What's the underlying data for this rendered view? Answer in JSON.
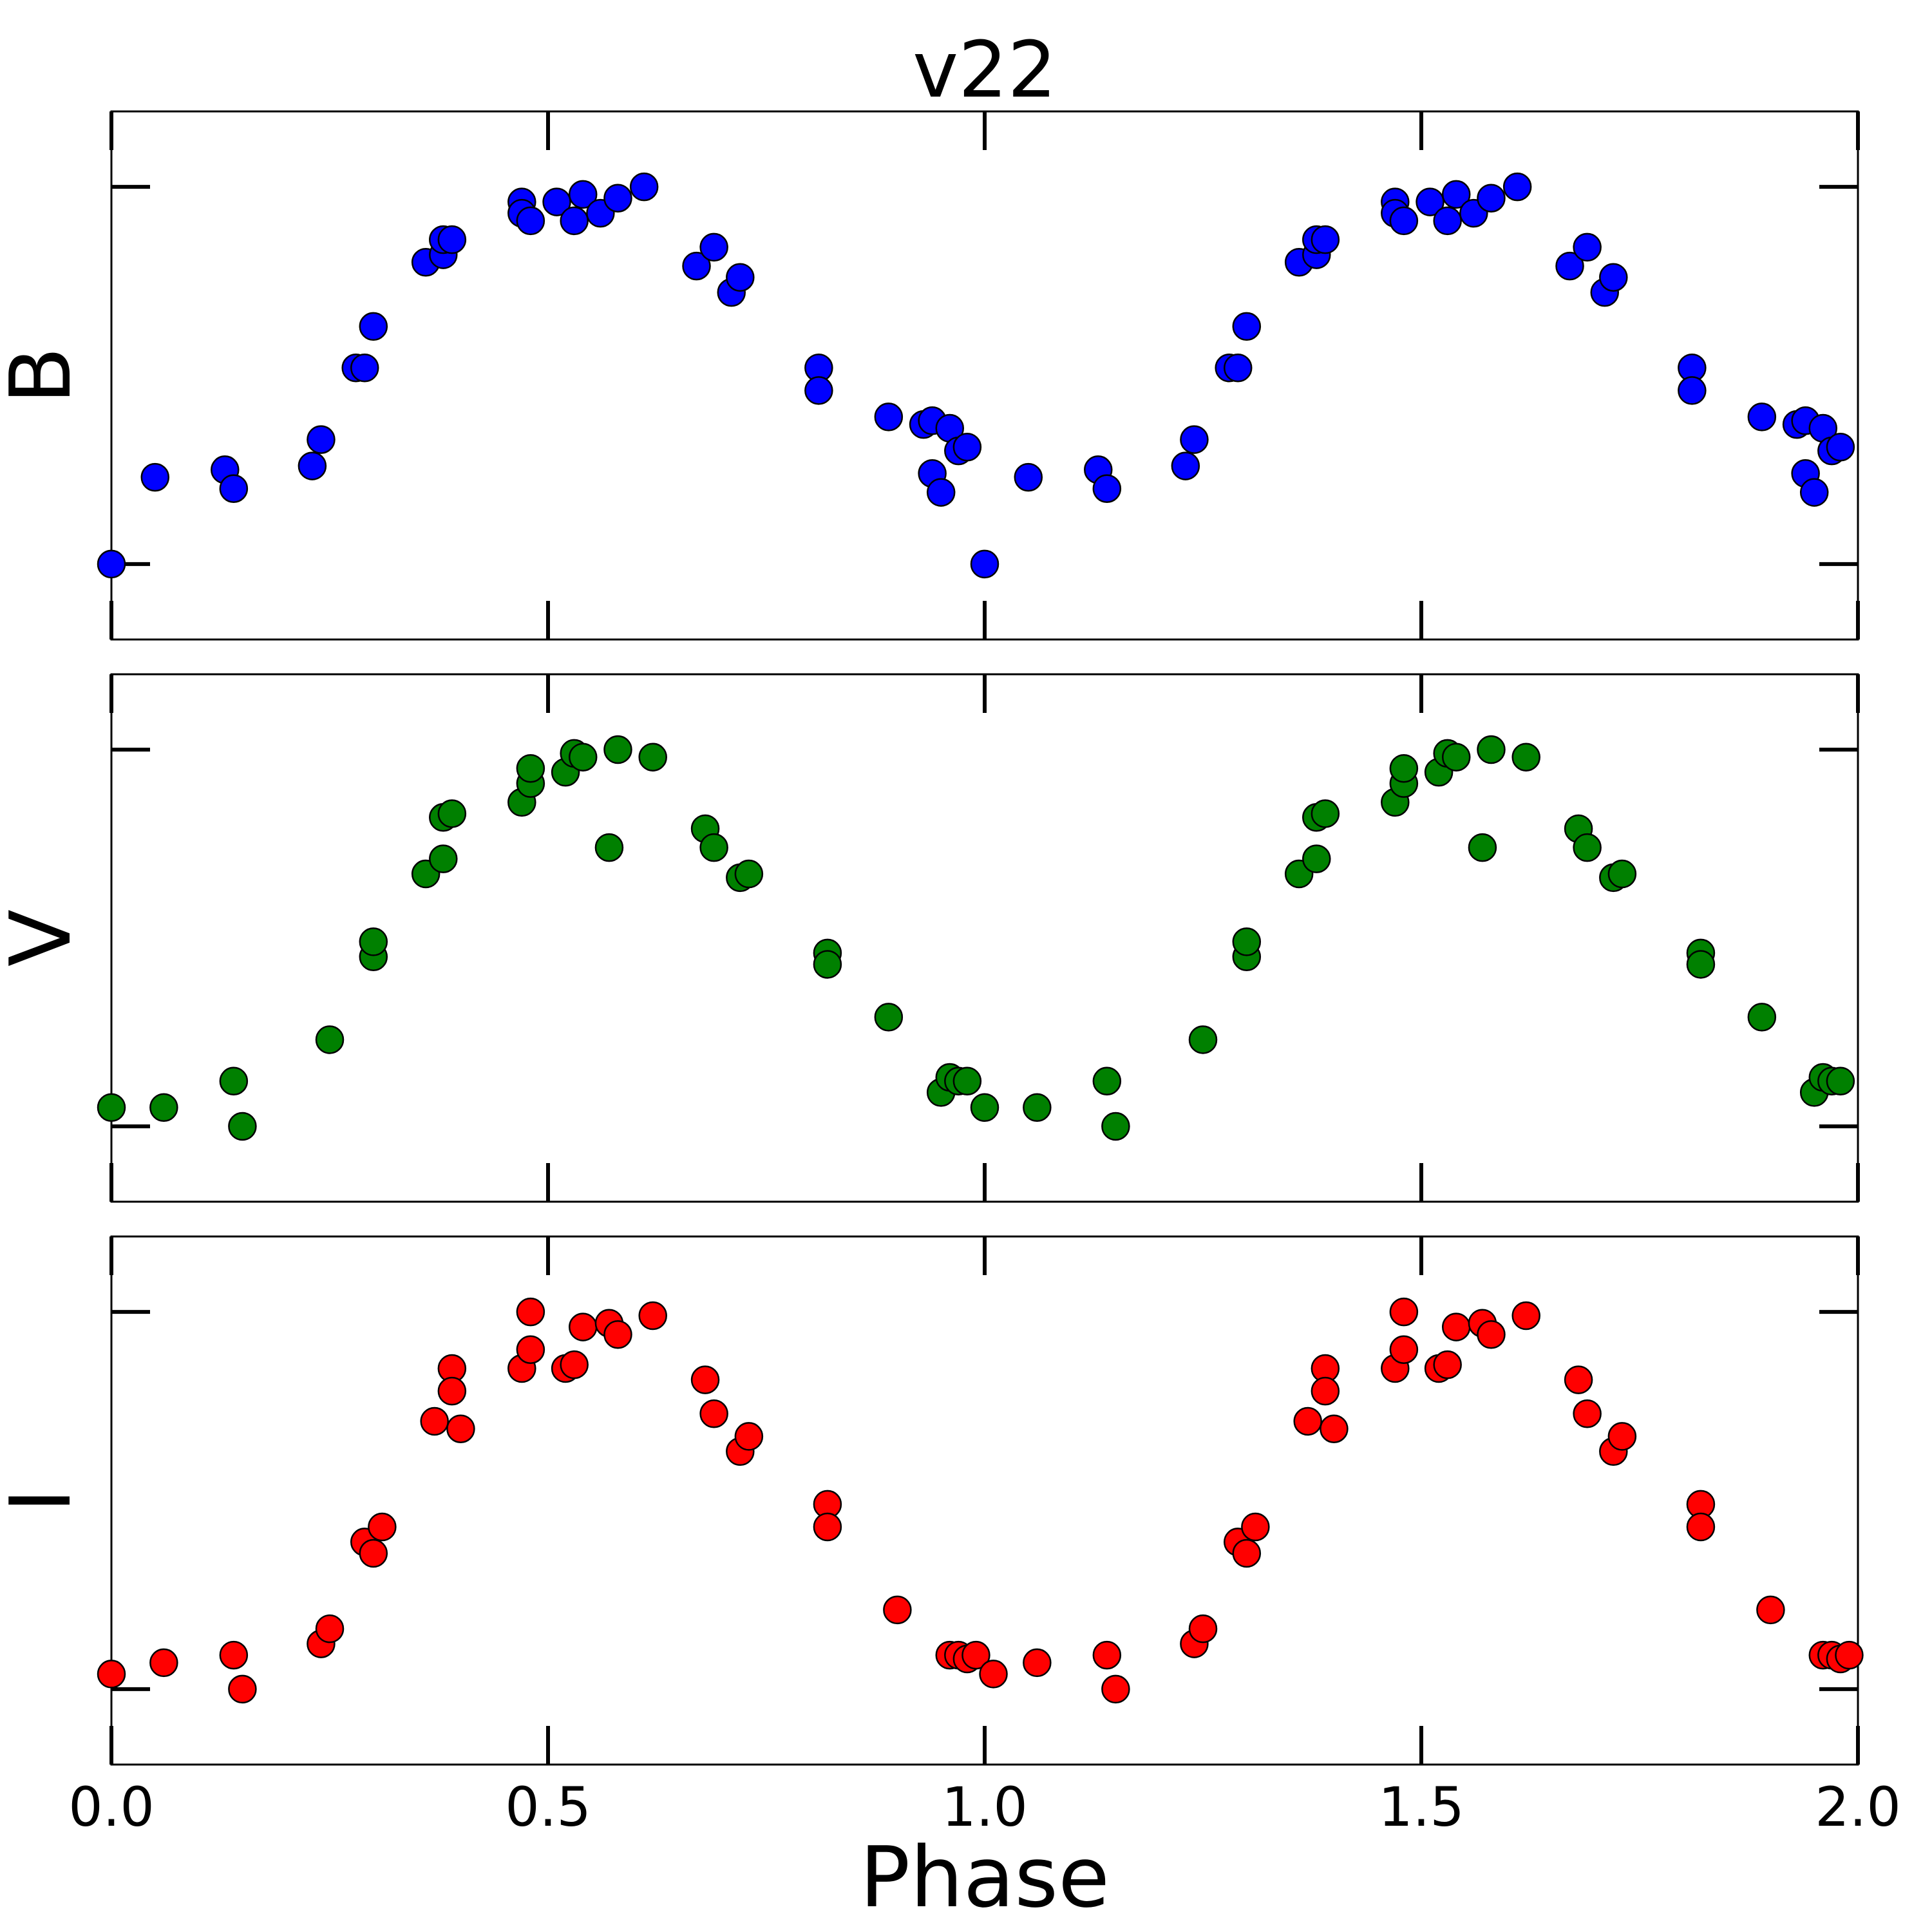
{
  "chart_data": [
    {
      "type": "scatter",
      "title": "v22",
      "ylabel": "B",
      "xlabel": "",
      "xlim": [
        0.0,
        2.0
      ],
      "ylim": [
        1.2,
        -0.2
      ],
      "color": "#0000ff",
      "series": [
        {
          "name": "B",
          "x": [
            0.0,
            0.05,
            0.13,
            0.14,
            0.23,
            0.24,
            0.28,
            0.29,
            0.3,
            0.36,
            0.38,
            0.38,
            0.39,
            0.47,
            0.47,
            0.48,
            0.51,
            0.53,
            0.54,
            0.56,
            0.58,
            0.61,
            0.67,
            0.69,
            0.71,
            0.72,
            0.81,
            0.81,
            0.89,
            0.93,
            0.94,
            0.94,
            0.95,
            0.96,
            0.97,
            0.98,
            1.0,
            1.05,
            1.13,
            1.14,
            1.23,
            1.24,
            1.28,
            1.29,
            1.3,
            1.36,
            1.38,
            1.38,
            1.39,
            1.47,
            1.47,
            1.48,
            1.51,
            1.53,
            1.54,
            1.56,
            1.58,
            1.61,
            1.67,
            1.69,
            1.71,
            1.72,
            1.81,
            1.81,
            1.89,
            1.93,
            1.94,
            1.94,
            1.95,
            1.96,
            1.97,
            1.98
          ],
          "y": [
            1.0,
            0.77,
            0.75,
            0.8,
            0.74,
            0.67,
            0.48,
            0.48,
            0.37,
            0.2,
            0.18,
            0.14,
            0.14,
            0.04,
            0.07,
            0.09,
            0.04,
            0.09,
            0.02,
            0.07,
            0.03,
            0.0,
            0.21,
            0.16,
            0.28,
            0.24,
            0.48,
            0.54,
            0.61,
            0.63,
            0.62,
            0.76,
            0.81,
            0.64,
            0.7,
            0.69,
            1.0,
            0.77,
            0.75,
            0.8,
            0.74,
            0.67,
            0.48,
            0.48,
            0.37,
            0.2,
            0.18,
            0.14,
            0.14,
            0.04,
            0.07,
            0.09,
            0.04,
            0.09,
            0.02,
            0.07,
            0.03,
            0.0,
            0.21,
            0.16,
            0.28,
            0.24,
            0.48,
            0.54,
            0.61,
            0.63,
            0.62,
            0.76,
            0.81,
            0.64,
            0.7,
            0.69
          ]
        }
      ]
    },
    {
      "type": "scatter",
      "title": "",
      "ylabel": "V",
      "xlabel": "",
      "xlim": [
        0.0,
        2.0
      ],
      "ylim": [
        1.2,
        -0.2
      ],
      "color": "#008000",
      "series": [
        {
          "name": "V",
          "x": [
            0.0,
            0.06,
            0.14,
            0.15,
            0.25,
            0.3,
            0.3,
            0.36,
            0.38,
            0.38,
            0.39,
            0.47,
            0.48,
            0.48,
            0.52,
            0.53,
            0.54,
            0.57,
            0.58,
            0.62,
            0.68,
            0.69,
            0.72,
            0.73,
            0.82,
            0.82,
            0.89,
            0.95,
            0.96,
            0.97,
            0.98,
            1.0,
            1.06,
            1.14,
            1.15,
            1.25,
            1.3,
            1.3,
            1.36,
            1.38,
            1.38,
            1.39,
            1.47,
            1.48,
            1.48,
            1.52,
            1.53,
            1.54,
            1.57,
            1.58,
            1.62,
            1.68,
            1.69,
            1.72,
            1.73,
            1.82,
            1.82,
            1.89,
            1.95,
            1.96,
            1.97,
            1.98
          ],
          "y": [
            0.95,
            0.95,
            0.88,
            1.0,
            0.77,
            0.55,
            0.51,
            0.33,
            0.29,
            0.18,
            0.17,
            0.14,
            0.09,
            0.05,
            0.06,
            0.01,
            0.02,
            0.26,
            0.0,
            0.02,
            0.21,
            0.26,
            0.34,
            0.33,
            0.54,
            0.57,
            0.71,
            0.91,
            0.87,
            0.88,
            0.88,
            0.95,
            0.95,
            0.88,
            1.0,
            0.77,
            0.55,
            0.51,
            0.33,
            0.29,
            0.18,
            0.17,
            0.14,
            0.09,
            0.05,
            0.06,
            0.01,
            0.02,
            0.26,
            0.0,
            0.02,
            0.21,
            0.26,
            0.34,
            0.33,
            0.54,
            0.57,
            0.71,
            0.91,
            0.87,
            0.88,
            0.88
          ]
        }
      ]
    },
    {
      "type": "scatter",
      "title": "",
      "ylabel": "I",
      "xlabel": "Phase",
      "xlim": [
        0.0,
        2.0
      ],
      "ylim": [
        1.2,
        -0.2
      ],
      "xticks": [
        "0.0",
        "0.5",
        "1.0",
        "1.5",
        "2.0"
      ],
      "color": "#ff0000",
      "series": [
        {
          "name": "I",
          "x": [
            0.0,
            0.06,
            0.14,
            0.15,
            0.24,
            0.25,
            0.29,
            0.3,
            0.31,
            0.37,
            0.39,
            0.39,
            0.4,
            0.47,
            0.48,
            0.48,
            0.52,
            0.53,
            0.54,
            0.57,
            0.58,
            0.62,
            0.68,
            0.69,
            0.72,
            0.73,
            0.82,
            0.82,
            0.9,
            0.96,
            0.97,
            0.98,
            0.99,
            1.01,
            1.06,
            1.14,
            1.15,
            1.24,
            1.25,
            1.29,
            1.3,
            1.31,
            1.37,
            1.39,
            1.39,
            1.4,
            1.47,
            1.48,
            1.48,
            1.52,
            1.53,
            1.54,
            1.57,
            1.58,
            1.62,
            1.68,
            1.69,
            1.72,
            1.73,
            1.82,
            1.82,
            1.9,
            1.96,
            1.97,
            1.98,
            1.99
          ],
          "y": [
            0.96,
            0.93,
            0.91,
            1.0,
            0.88,
            0.84,
            0.61,
            0.64,
            0.57,
            0.29,
            0.15,
            0.21,
            0.31,
            0.15,
            0.1,
            0.0,
            0.15,
            0.14,
            0.04,
            0.03,
            0.06,
            0.01,
            0.18,
            0.27,
            0.37,
            0.33,
            0.51,
            0.57,
            0.79,
            0.91,
            0.91,
            0.92,
            0.91,
            0.96,
            0.93,
            0.91,
            1.0,
            0.88,
            0.84,
            0.61,
            0.64,
            0.57,
            0.29,
            0.15,
            0.21,
            0.31,
            0.15,
            0.1,
            0.0,
            0.15,
            0.14,
            0.04,
            0.03,
            0.06,
            0.01,
            0.18,
            0.27,
            0.37,
            0.33,
            0.51,
            0.57,
            0.79,
            0.91,
            0.91,
            0.92,
            0.91
          ]
        }
      ]
    }
  ]
}
